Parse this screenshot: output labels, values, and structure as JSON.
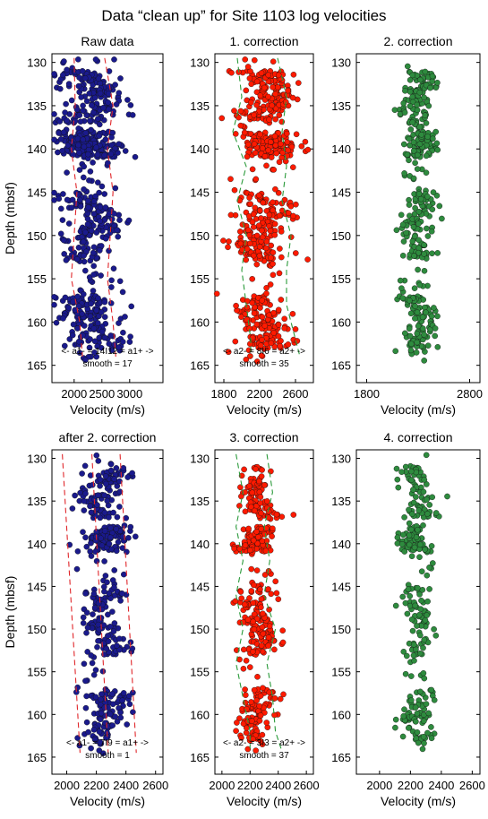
{
  "title": "Data “clean up” for Site 1103 log velocities",
  "chart_data": [
    {
      "type": "scatter",
      "panel": "top-left",
      "title": "Raw data",
      "xlabel": "Velocity (m/s)",
      "ylabel": "Depth (mbsf)",
      "xlim": [
        1600,
        3600
      ],
      "ylim": [
        129,
        167
      ],
      "y_inverted": true,
      "xticks": [
        2000,
        2500,
        3000
      ],
      "yticks": [
        130,
        135,
        140,
        145,
        150,
        155,
        160,
        165
      ],
      "point_color": "#1a1a8c",
      "point_count": 720,
      "velocity_center": 2300,
      "velocity_spread": 480,
      "trend_lines": [
        {
          "label": "a1-",
          "color": "#e0262a",
          "style": "dashed",
          "depth": [
            129.5,
            135,
            140,
            145,
            150,
            155,
            160,
            164
          ],
          "velocity": [
            2000,
            2020,
            1950,
            2050,
            2000,
            1950,
            2100,
            2150
          ]
        },
        {
          "label": "a1+",
          "color": "#e0262a",
          "style": "dashed",
          "depth": [
            129.5,
            135,
            140,
            145,
            150,
            155,
            160,
            164
          ],
          "velocity": [
            2550,
            2700,
            2600,
            2700,
            2650,
            2600,
            2700,
            2750
          ]
        }
      ],
      "annotation": [
        "<- a1- = 14I12 = a1+ ->",
        "smooth = 17"
      ]
    },
    {
      "type": "scatter",
      "panel": "top-middle",
      "title": "1. correction",
      "xlabel": "Velocity (m/s)",
      "ylabel": "",
      "xlim": [
        1700,
        2800
      ],
      "ylim": [
        129,
        167
      ],
      "y_inverted": true,
      "xticks": [
        1800,
        2200,
        2600
      ],
      "yticks": [
        130,
        135,
        140,
        145,
        150,
        155,
        160,
        165
      ],
      "point_color": "#ff1a00",
      "point_count": 640,
      "velocity_center": 2250,
      "velocity_spread": 260,
      "trend_lines": [
        {
          "label": "a2-",
          "color": "#2a9a3a",
          "style": "dashed",
          "depth": [
            129.5,
            134,
            138,
            142,
            146,
            150,
            154,
            158,
            162,
            164
          ],
          "velocity": [
            1950,
            2000,
            1900,
            2050,
            1950,
            2050,
            2000,
            2050,
            2100,
            2100
          ]
        },
        {
          "label": "a2+",
          "color": "#2a9a3a",
          "style": "dashed",
          "depth": [
            129.5,
            134,
            138,
            142,
            146,
            150,
            154,
            158,
            162,
            164
          ],
          "velocity": [
            2400,
            2500,
            2450,
            2500,
            2450,
            2550,
            2500,
            2500,
            2600,
            2650
          ]
        }
      ],
      "annotation": [
        "<- a2- = 8I6 = a2+ ->",
        "smooth = 35"
      ]
    },
    {
      "type": "scatter",
      "panel": "top-right",
      "title": "2. correction",
      "xlabel": "Velocity (m/s)",
      "ylabel": "",
      "xlim": [
        1700,
        2900
      ],
      "ylim": [
        129,
        167
      ],
      "y_inverted": true,
      "xticks": [
        1800,
        2800
      ],
      "yticks": [
        130,
        135,
        140,
        145,
        150,
        155,
        160,
        165
      ],
      "point_color": "#2e8b3e",
      "point_count": 430,
      "velocity_center": 2300,
      "velocity_spread": 140,
      "trend_lines": [],
      "annotation": []
    },
    {
      "type": "scatter",
      "panel": "bottom-left",
      "title": "after 2. correction",
      "xlabel": "Velocity (m/s)",
      "ylabel": "Depth (mbsf)",
      "xlim": [
        1900,
        2650
      ],
      "ylim": [
        129,
        167
      ],
      "y_inverted": true,
      "xticks": [
        2000,
        2200,
        2400,
        2600
      ],
      "yticks": [
        130,
        135,
        140,
        145,
        150,
        155,
        160,
        165
      ],
      "point_color": "#1a1a8c",
      "point_count": 430,
      "velocity_center": 2250,
      "velocity_spread": 140,
      "trend_lines": [
        {
          "label": "a1-",
          "color": "#e0262a",
          "style": "dashed",
          "depth": [
            129.5,
            164.5
          ],
          "velocity": [
            1970,
            2090
          ]
        },
        {
          "label": "",
          "color": "#e0262a",
          "style": "dashed",
          "depth": [
            129.5,
            164.5
          ],
          "velocity": [
            2170,
            2280
          ]
        },
        {
          "label": "a1+",
          "color": "#e0262a",
          "style": "dashed",
          "depth": [
            129.5,
            164.5
          ],
          "velocity": [
            2360,
            2470
          ]
        }
      ],
      "annotation": [
        "<- a1- = 7I9 = a1+ ->",
        "smooth = 1"
      ]
    },
    {
      "type": "scatter",
      "panel": "bottom-middle",
      "title": "3. correction",
      "xlabel": "Velocity (m/s)",
      "ylabel": "",
      "xlim": [
        1950,
        2650
      ],
      "ylim": [
        129,
        167
      ],
      "y_inverted": true,
      "xticks": [
        2000,
        2200,
        2400,
        2600
      ],
      "yticks": [
        130,
        135,
        140,
        145,
        150,
        155,
        160,
        165
      ],
      "point_color": "#ff1a00",
      "point_count": 430,
      "velocity_center": 2250,
      "velocity_spread": 110,
      "trend_lines": [
        {
          "label": "a2-",
          "color": "#2a9a3a",
          "style": "dashed",
          "depth": [
            129.5,
            134,
            138,
            142,
            146,
            150,
            154,
            158,
            162,
            164
          ],
          "velocity": [
            2100,
            2150,
            2100,
            2150,
            2100,
            2150,
            2100,
            2150,
            2200,
            2200
          ]
        },
        {
          "label": "a2+",
          "color": "#2a9a3a",
          "style": "dashed",
          "depth": [
            129.5,
            134,
            138,
            142,
            146,
            150,
            154,
            158,
            162,
            164
          ],
          "velocity": [
            2320,
            2360,
            2300,
            2340,
            2300,
            2380,
            2320,
            2360,
            2380,
            2420
          ]
        }
      ],
      "annotation": [
        "<- a2- = 3I3 = a2+ ->",
        "smooth = 37"
      ]
    },
    {
      "type": "scatter",
      "panel": "bottom-right",
      "title": "4. correction",
      "xlabel": "Velocity (m/s)",
      "ylabel": "",
      "xlim": [
        1850,
        2650
      ],
      "ylim": [
        129,
        167
      ],
      "y_inverted": true,
      "xticks": [
        2000,
        2200,
        2400,
        2600
      ],
      "yticks": [
        130,
        135,
        140,
        145,
        150,
        155,
        160,
        165
      ],
      "point_color": "#2e8b3e",
      "point_count": 300,
      "velocity_center": 2250,
      "velocity_spread": 90,
      "trend_lines": [],
      "annotation": []
    }
  ]
}
